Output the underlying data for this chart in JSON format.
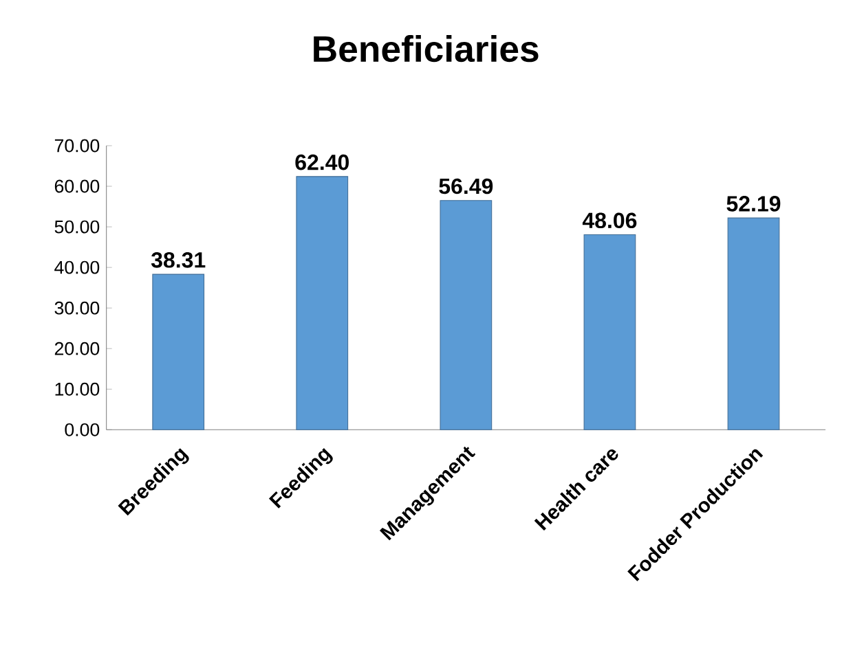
{
  "chart_data": {
    "type": "bar",
    "title": "Beneficiaries",
    "categories": [
      "Breeding",
      "Feeding",
      "Management",
      "Health care",
      "Fodder Production"
    ],
    "values": [
      38.31,
      62.4,
      56.49,
      48.06,
      52.19
    ],
    "value_labels": [
      "38.31",
      "62.40",
      "56.49",
      "48.06",
      "52.19"
    ],
    "color": "#5b9bd5",
    "ylim": [
      0,
      70
    ],
    "yticks": [
      {
        "value": 0,
        "label": "0.00"
      },
      {
        "value": 10,
        "label": "10.00"
      },
      {
        "value": 20,
        "label": "20.00"
      },
      {
        "value": 30,
        "label": "30.00"
      },
      {
        "value": 40,
        "label": "40.00"
      },
      {
        "value": 50,
        "label": "50.00"
      },
      {
        "value": 60,
        "label": "60.00"
      },
      {
        "value": 70,
        "label": "70.00"
      }
    ]
  }
}
